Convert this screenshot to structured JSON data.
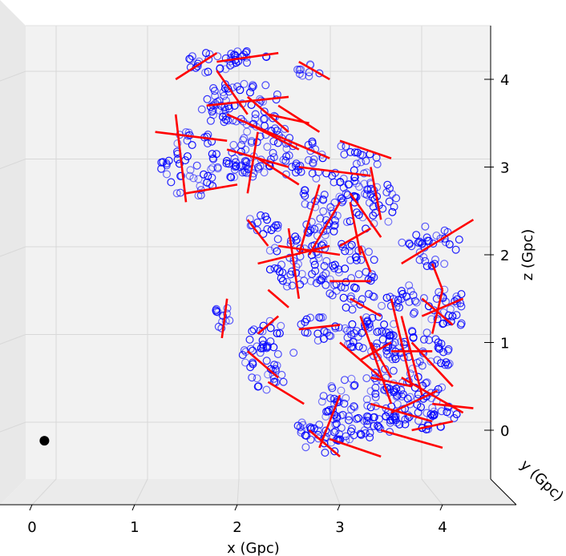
{
  "chart_data": {
    "type": "scatter",
    "projection": "3d",
    "xlabel": "x (Gpc)",
    "ylabel": "y (Gpc)",
    "zlabel": "z (Gpc)",
    "x_ticks": [
      "0",
      "1",
      "2",
      "3",
      "4"
    ],
    "z_ticks": [
      "0",
      "1",
      "2",
      "3",
      "4"
    ],
    "xlim": [
      -0.05,
      4.55
    ],
    "zlim": [
      -0.25,
      4.55
    ],
    "grid": true,
    "marker_color": "#0000ff",
    "filament_color": "#ff0000",
    "observer_color": "#000000",
    "observer": {
      "x": 0.12,
      "z": -0.12
    },
    "clusters": [
      {
        "x": 1.55,
        "z": 3.05,
        "rx": 0.3,
        "rz": 0.4,
        "n": 55,
        "seed": 1
      },
      {
        "x": 1.75,
        "z": 4.2,
        "rx": 0.28,
        "rz": 0.15,
        "n": 25,
        "seed": 2
      },
      {
        "x": 2.1,
        "z": 4.25,
        "rx": 0.22,
        "rz": 0.08,
        "n": 14,
        "seed": 3
      },
      {
        "x": 2.7,
        "z": 4.1,
        "rx": 0.12,
        "rz": 0.08,
        "n": 10,
        "seed": 4
      },
      {
        "x": 2.05,
        "z": 3.7,
        "rx": 0.4,
        "rz": 0.3,
        "n": 70,
        "seed": 5
      },
      {
        "x": 2.35,
        "z": 3.15,
        "rx": 0.45,
        "rz": 0.3,
        "n": 70,
        "seed": 6
      },
      {
        "x": 2.0,
        "z": 2.95,
        "rx": 0.2,
        "rz": 0.15,
        "n": 18,
        "seed": 7
      },
      {
        "x": 3.05,
        "z": 3.0,
        "rx": 0.35,
        "rz": 0.25,
        "n": 40,
        "seed": 8
      },
      {
        "x": 3.3,
        "z": 2.55,
        "rx": 0.3,
        "rz": 0.3,
        "n": 45,
        "seed": 9
      },
      {
        "x": 2.8,
        "z": 2.5,
        "rx": 0.25,
        "rz": 0.3,
        "n": 40,
        "seed": 10
      },
      {
        "x": 2.25,
        "z": 2.35,
        "rx": 0.15,
        "rz": 0.15,
        "n": 15,
        "seed": 11
      },
      {
        "x": 2.6,
        "z": 1.95,
        "rx": 0.3,
        "rz": 0.35,
        "n": 55,
        "seed": 12
      },
      {
        "x": 3.1,
        "z": 1.8,
        "rx": 0.3,
        "rz": 0.35,
        "n": 50,
        "seed": 13
      },
      {
        "x": 3.9,
        "z": 2.1,
        "rx": 0.3,
        "rz": 0.25,
        "n": 35,
        "seed": 14
      },
      {
        "x": 4.05,
        "z": 1.4,
        "rx": 0.22,
        "rz": 0.25,
        "n": 30,
        "seed": 15
      },
      {
        "x": 3.65,
        "z": 1.5,
        "rx": 0.2,
        "rz": 0.2,
        "n": 20,
        "seed": 16
      },
      {
        "x": 1.85,
        "z": 1.3,
        "rx": 0.08,
        "rz": 0.15,
        "n": 12,
        "seed": 17
      },
      {
        "x": 2.3,
        "z": 0.85,
        "rx": 0.25,
        "rz": 0.4,
        "n": 55,
        "seed": 18
      },
      {
        "x": 2.8,
        "z": 1.15,
        "rx": 0.2,
        "rz": 0.15,
        "n": 20,
        "seed": 19
      },
      {
        "x": 3.3,
        "z": 1.2,
        "rx": 0.3,
        "rz": 0.35,
        "n": 55,
        "seed": 20
      },
      {
        "x": 3.7,
        "z": 0.75,
        "rx": 0.4,
        "rz": 0.4,
        "n": 85,
        "seed": 21
      },
      {
        "x": 3.2,
        "z": 0.35,
        "rx": 0.4,
        "rz": 0.25,
        "n": 55,
        "seed": 22
      },
      {
        "x": 3.8,
        "z": 0.2,
        "rx": 0.35,
        "rz": 0.2,
        "n": 50,
        "seed": 23
      },
      {
        "x": 2.85,
        "z": -0.05,
        "rx": 0.3,
        "rz": 0.22,
        "n": 45,
        "seed": 24
      },
      {
        "x": 3.35,
        "z": 0.05,
        "rx": 0.25,
        "rz": 0.15,
        "n": 25,
        "seed": 25
      }
    ],
    "filaments": [
      [
        1.4,
        4.0,
        1.8,
        4.3
      ],
      [
        1.8,
        4.2,
        2.4,
        4.3
      ],
      [
        2.6,
        4.2,
        2.9,
        4.0
      ],
      [
        1.8,
        4.1,
        2.1,
        3.6
      ],
      [
        1.7,
        3.7,
        2.5,
        3.8
      ],
      [
        2.1,
        3.8,
        2.5,
        3.4
      ],
      [
        2.3,
        3.6,
        2.7,
        3.5
      ],
      [
        2.4,
        3.7,
        2.8,
        3.4
      ],
      [
        1.2,
        3.4,
        1.9,
        3.3
      ],
      [
        1.4,
        3.6,
        1.5,
        2.6
      ],
      [
        1.5,
        2.7,
        2.0,
        2.8
      ],
      [
        1.9,
        3.2,
        2.5,
        3.0
      ],
      [
        1.9,
        3.6,
        2.9,
        3.1
      ],
      [
        2.2,
        3.4,
        2.1,
        2.7
      ],
      [
        2.2,
        3.1,
        2.6,
        2.8
      ],
      [
        2.1,
        3.5,
        2.6,
        3.2
      ],
      [
        2.6,
        3.0,
        3.3,
        2.9
      ],
      [
        3.0,
        3.3,
        3.5,
        3.1
      ],
      [
        3.3,
        3.0,
        3.4,
        2.4
      ],
      [
        3.1,
        2.7,
        3.4,
        2.2
      ],
      [
        2.8,
        2.8,
        2.6,
        2.0
      ],
      [
        2.7,
        2.0,
        3.0,
        2.6
      ],
      [
        3.0,
        2.1,
        3.3,
        2.3
      ],
      [
        3.1,
        2.6,
        3.2,
        2.0
      ],
      [
        2.1,
        2.4,
        2.3,
        2.1
      ],
      [
        2.2,
        1.9,
        2.9,
        2.1
      ],
      [
        2.4,
        2.1,
        3.0,
        2.0
      ],
      [
        2.5,
        2.3,
        2.6,
        1.5
      ],
      [
        2.3,
        1.6,
        2.5,
        1.4
      ],
      [
        2.9,
        1.7,
        3.3,
        1.7
      ],
      [
        3.2,
        2.1,
        3.3,
        1.8
      ],
      [
        3.6,
        1.9,
        4.3,
        2.4
      ],
      [
        3.9,
        1.9,
        4.0,
        1.6
      ],
      [
        3.8,
        1.5,
        4.1,
        1.2
      ],
      [
        3.8,
        1.3,
        4.2,
        1.5
      ],
      [
        3.9,
        1.1,
        4.0,
        1.6
      ],
      [
        1.9,
        1.5,
        1.85,
        1.05
      ],
      [
        2.2,
        1.1,
        2.4,
        1.3
      ],
      [
        2.1,
        0.9,
        2.4,
        0.6
      ],
      [
        2.3,
        0.55,
        2.65,
        0.3
      ],
      [
        2.6,
        1.15,
        3.0,
        1.2
      ],
      [
        3.1,
        1.5,
        3.4,
        1.3
      ],
      [
        3.2,
        1.3,
        3.5,
        0.3
      ],
      [
        3.0,
        1.0,
        3.4,
        0.6
      ],
      [
        3.3,
        1.0,
        3.5,
        0.6
      ],
      [
        3.5,
        0.9,
        3.9,
        0.9
      ],
      [
        3.6,
        1.3,
        3.8,
        0.4
      ],
      [
        3.7,
        1.0,
        4.1,
        0.5
      ],
      [
        3.3,
        0.6,
        3.7,
        0.5
      ],
      [
        3.5,
        1.5,
        3.7,
        0.5
      ],
      [
        3.2,
        0.8,
        3.5,
        1.0
      ],
      [
        3.6,
        0.6,
        4.2,
        0.2
      ],
      [
        3.9,
        0.3,
        4.3,
        0.25
      ],
      [
        3.5,
        0.2,
        3.95,
        0.45
      ],
      [
        3.3,
        0.3,
        3.9,
        0.1
      ],
      [
        3.4,
        0.0,
        4.0,
        -0.2
      ],
      [
        2.7,
        0.0,
        3.0,
        -0.3
      ],
      [
        2.9,
        -0.1,
        3.4,
        -0.3
      ],
      [
        2.8,
        -0.2,
        3.0,
        0.4
      ],
      [
        3.7,
        0.0,
        4.1,
        0.1
      ]
    ]
  }
}
